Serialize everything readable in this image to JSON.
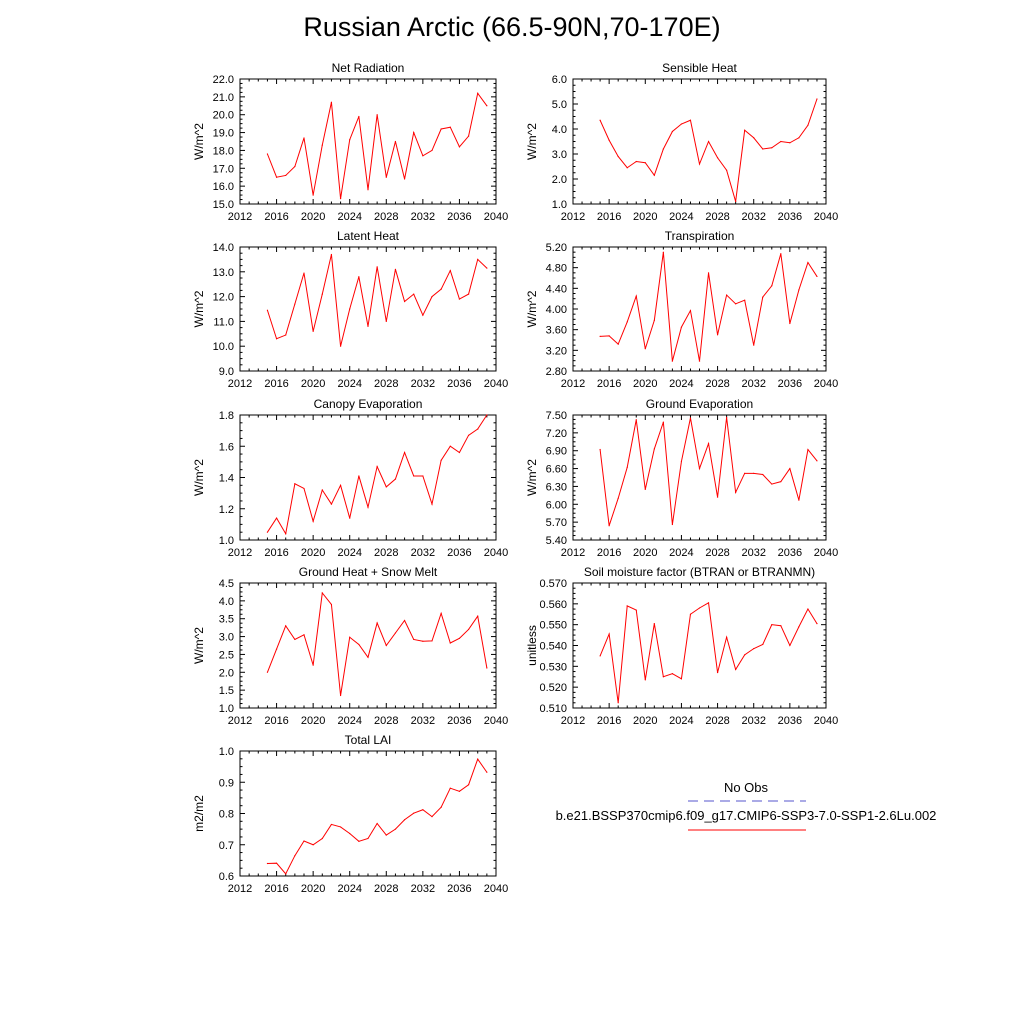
{
  "figure": {
    "title": "Russian Arctic (66.5-90N,70-170E)"
  },
  "legend": {
    "obs_label": "No Obs",
    "model_label": "b.e21.BSSP370cmip6.f09_g17.CMIP6-SSP3-7.0-SSP1-2.6Lu.002",
    "obs_color": "#5555cc",
    "obs_style": "dashed",
    "model_color": "#ff0000",
    "model_style": "solid"
  },
  "chart_data": [
    {
      "type": "line",
      "title": "Net Radiation",
      "xlabel": "",
      "ylabel": "W/m^2",
      "xlim": [
        2012,
        2040
      ],
      "ylim": [
        15.0,
        22.0
      ],
      "xticks": [
        2012,
        2016,
        2020,
        2024,
        2028,
        2032,
        2036,
        2040
      ],
      "yticks": [
        "15.0",
        "16.0",
        "17.0",
        "18.0",
        "19.0",
        "20.0",
        "21.0",
        "22.0"
      ],
      "grid": false,
      "series": [
        {
          "color": "#ff0000",
          "x": [
            2015,
            2016,
            2017,
            2018,
            2019,
            2020,
            2021,
            2022,
            2023,
            2024,
            2025,
            2026,
            2027,
            2028,
            2029,
            2030,
            2031,
            2032,
            2033,
            2034,
            2035,
            2036,
            2037,
            2038,
            2039
          ],
          "y": [
            17.8,
            16.5,
            16.6,
            17.1,
            18.7,
            15.5,
            18.3,
            20.7,
            15.3,
            18.6,
            19.9,
            15.8,
            20.0,
            16.5,
            18.5,
            16.4,
            19.0,
            17.7,
            18.0,
            19.2,
            19.3,
            18.2,
            18.8,
            21.2,
            20.5
          ]
        }
      ]
    },
    {
      "type": "line",
      "title": "Sensible Heat",
      "xlabel": "",
      "ylabel": "W/m^2",
      "xlim": [
        2012,
        2040
      ],
      "ylim": [
        1.0,
        6.0
      ],
      "xticks": [
        2012,
        2016,
        2020,
        2024,
        2028,
        2032,
        2036,
        2040
      ],
      "yticks": [
        "1.0",
        "2.0",
        "3.0",
        "4.0",
        "5.0",
        "6.0"
      ],
      "grid": false,
      "series": [
        {
          "color": "#ff0000",
          "x": [
            2015,
            2016,
            2017,
            2018,
            2019,
            2020,
            2021,
            2022,
            2023,
            2024,
            2025,
            2026,
            2027,
            2028,
            2029,
            2030,
            2031,
            2032,
            2033,
            2034,
            2035,
            2036,
            2037,
            2038,
            2039
          ],
          "y": [
            4.35,
            3.55,
            2.9,
            2.45,
            2.7,
            2.65,
            2.15,
            3.2,
            3.9,
            4.2,
            4.35,
            2.6,
            3.5,
            2.85,
            2.35,
            1.1,
            3.95,
            3.65,
            3.2,
            3.25,
            3.5,
            3.45,
            3.65,
            4.15,
            5.2
          ]
        }
      ]
    },
    {
      "type": "line",
      "title": "Latent Heat",
      "xlabel": "",
      "ylabel": "W/m^2",
      "xlim": [
        2012,
        2040
      ],
      "ylim": [
        9.0,
        14.0
      ],
      "xticks": [
        2012,
        2016,
        2020,
        2024,
        2028,
        2032,
        2036,
        2040
      ],
      "yticks": [
        "9.0",
        "10.0",
        "11.0",
        "12.0",
        "13.0",
        "14.0"
      ],
      "grid": false,
      "series": [
        {
          "color": "#ff0000",
          "x": [
            2015,
            2016,
            2017,
            2018,
            2019,
            2020,
            2021,
            2022,
            2023,
            2024,
            2025,
            2026,
            2027,
            2028,
            2029,
            2030,
            2031,
            2032,
            2033,
            2034,
            2035,
            2036,
            2037,
            2038,
            2039
          ],
          "y": [
            11.45,
            10.3,
            10.45,
            11.7,
            12.95,
            10.6,
            12.1,
            13.7,
            10.0,
            11.5,
            12.8,
            10.8,
            13.2,
            11.0,
            13.1,
            11.8,
            12.1,
            11.25,
            12.0,
            12.3,
            13.05,
            11.9,
            12.1,
            13.5,
            13.15
          ]
        }
      ]
    },
    {
      "type": "line",
      "title": "Transpiration",
      "xlabel": "",
      "ylabel": "W/m^2",
      "xlim": [
        2012,
        2040
      ],
      "ylim": [
        2.8,
        5.2
      ],
      "xticks": [
        2012,
        2016,
        2020,
        2024,
        2028,
        2032,
        2036,
        2040
      ],
      "yticks": [
        "2.80",
        "3.20",
        "3.60",
        "4.00",
        "4.40",
        "4.80",
        "5.20"
      ],
      "grid": false,
      "series": [
        {
          "color": "#ff0000",
          "x": [
            2015,
            2016,
            2017,
            2018,
            2019,
            2020,
            2021,
            2022,
            2023,
            2024,
            2025,
            2026,
            2027,
            2028,
            2029,
            2030,
            2031,
            2032,
            2033,
            2034,
            2035,
            2036,
            2037,
            2038,
            2039
          ],
          "y": [
            3.47,
            3.48,
            3.32,
            3.75,
            4.25,
            3.23,
            3.78,
            5.1,
            2.99,
            3.65,
            3.97,
            2.99,
            4.7,
            3.5,
            4.27,
            4.1,
            4.17,
            3.3,
            4.23,
            4.45,
            5.07,
            3.72,
            4.37,
            4.9,
            4.63
          ]
        }
      ]
    },
    {
      "type": "line",
      "title": "Canopy Evaporation",
      "xlabel": "",
      "ylabel": "W/m^2",
      "xlim": [
        2012,
        2040
      ],
      "ylim": [
        1.0,
        1.8
      ],
      "xticks": [
        2012,
        2016,
        2020,
        2024,
        2028,
        2032,
        2036,
        2040
      ],
      "yticks": [
        "1.0",
        "1.2",
        "1.4",
        "1.6",
        "1.8"
      ],
      "grid": false,
      "series": [
        {
          "color": "#ff0000",
          "x": [
            2015,
            2016,
            2017,
            2018,
            2019,
            2020,
            2021,
            2022,
            2023,
            2024,
            2025,
            2026,
            2027,
            2028,
            2029,
            2030,
            2031,
            2032,
            2033,
            2034,
            2035,
            2036,
            2037,
            2038,
            2039
          ],
          "y": [
            1.05,
            1.14,
            1.04,
            1.36,
            1.33,
            1.12,
            1.32,
            1.23,
            1.35,
            1.14,
            1.41,
            1.21,
            1.47,
            1.34,
            1.39,
            1.56,
            1.41,
            1.41,
            1.23,
            1.51,
            1.6,
            1.56,
            1.67,
            1.71,
            1.8
          ]
        }
      ]
    },
    {
      "type": "line",
      "title": "Ground Evaporation",
      "xlabel": "",
      "ylabel": "W/m^2",
      "xlim": [
        2012,
        2040
      ],
      "ylim": [
        5.4,
        7.5
      ],
      "xticks": [
        2012,
        2016,
        2020,
        2024,
        2028,
        2032,
        2036,
        2040
      ],
      "yticks": [
        "5.40",
        "5.70",
        "6.00",
        "6.30",
        "6.60",
        "6.90",
        "7.20",
        "7.50"
      ],
      "grid": false,
      "series": [
        {
          "color": "#ff0000",
          "x": [
            2015,
            2016,
            2017,
            2018,
            2019,
            2020,
            2021,
            2022,
            2023,
            2024,
            2025,
            2026,
            2027,
            2028,
            2029,
            2030,
            2031,
            2032,
            2033,
            2034,
            2035,
            2036,
            2037,
            2038,
            2039
          ],
          "y": [
            6.92,
            5.64,
            6.1,
            6.62,
            7.42,
            6.25,
            6.93,
            7.38,
            5.66,
            6.72,
            7.45,
            6.6,
            7.02,
            6.12,
            7.46,
            6.2,
            6.52,
            6.52,
            6.5,
            6.34,
            6.38,
            6.6,
            6.07,
            6.92,
            6.73
          ]
        }
      ]
    },
    {
      "type": "line",
      "title": "Ground Heat + Snow Melt",
      "xlabel": "",
      "ylabel": "W/m^2",
      "xlim": [
        2012,
        2040
      ],
      "ylim": [
        1.0,
        4.5
      ],
      "xticks": [
        2012,
        2016,
        2020,
        2024,
        2028,
        2032,
        2036,
        2040
      ],
      "yticks": [
        "1.0",
        "1.5",
        "2.0",
        "2.5",
        "3.0",
        "3.5",
        "4.0",
        "4.5"
      ],
      "grid": false,
      "series": [
        {
          "color": "#ff0000",
          "x": [
            2015,
            2016,
            2017,
            2018,
            2019,
            2020,
            2021,
            2022,
            2023,
            2024,
            2025,
            2026,
            2027,
            2028,
            2029,
            2030,
            2031,
            2032,
            2033,
            2034,
            2035,
            2036,
            2037,
            2038,
            2039
          ],
          "y": [
            2.0,
            2.65,
            3.3,
            2.92,
            3.05,
            2.2,
            4.22,
            3.9,
            1.35,
            2.98,
            2.78,
            2.42,
            3.38,
            2.75,
            3.1,
            3.45,
            2.92,
            2.87,
            2.88,
            3.65,
            2.82,
            2.95,
            3.2,
            3.57,
            2.12
          ]
        }
      ]
    },
    {
      "type": "line",
      "title": "Soil moisture factor (BTRAN or BTRANMN)",
      "xlabel": "",
      "ylabel": "unitless",
      "xlim": [
        2012,
        2040
      ],
      "ylim": [
        0.51,
        0.57
      ],
      "xticks": [
        2012,
        2016,
        2020,
        2024,
        2028,
        2032,
        2036,
        2040
      ],
      "yticks": [
        "0.510",
        "0.520",
        "0.530",
        "0.540",
        "0.550",
        "0.560",
        "0.570"
      ],
      "grid": false,
      "series": [
        {
          "color": "#ff0000",
          "x": [
            2015,
            2016,
            2017,
            2018,
            2019,
            2020,
            2021,
            2022,
            2023,
            2024,
            2025,
            2026,
            2027,
            2028,
            2029,
            2030,
            2031,
            2032,
            2033,
            2034,
            2035,
            2036,
            2037,
            2038,
            2039
          ],
          "y": [
            0.535,
            0.5455,
            0.5125,
            0.559,
            0.557,
            0.5235,
            0.5505,
            0.525,
            0.5265,
            0.524,
            0.555,
            0.558,
            0.5605,
            0.527,
            0.544,
            0.5285,
            0.5355,
            0.5385,
            0.5405,
            0.55,
            0.5495,
            0.54,
            0.549,
            0.5575,
            0.5505
          ]
        }
      ]
    },
    {
      "type": "line",
      "title": "Total LAI",
      "xlabel": "",
      "ylabel": "m2/m2",
      "xlim": [
        2012,
        2040
      ],
      "ylim": [
        0.6,
        1.0
      ],
      "xticks": [
        2012,
        2016,
        2020,
        2024,
        2028,
        2032,
        2036,
        2040
      ],
      "yticks": [
        "0.6",
        "0.7",
        "0.8",
        "0.9",
        "1.0"
      ],
      "grid": false,
      "series": [
        {
          "color": "#ff0000",
          "x": [
            2015,
            2016,
            2017,
            2018,
            2019,
            2020,
            2021,
            2022,
            2023,
            2024,
            2025,
            2026,
            2027,
            2028,
            2029,
            2030,
            2031,
            2032,
            2033,
            2034,
            2035,
            2036,
            2037,
            2038,
            2039
          ],
          "y": [
            0.64,
            0.641,
            0.607,
            0.665,
            0.712,
            0.7,
            0.72,
            0.765,
            0.757,
            0.736,
            0.711,
            0.72,
            0.768,
            0.731,
            0.75,
            0.78,
            0.801,
            0.812,
            0.79,
            0.82,
            0.881,
            0.871,
            0.892,
            0.974,
            0.932
          ]
        }
      ]
    }
  ]
}
